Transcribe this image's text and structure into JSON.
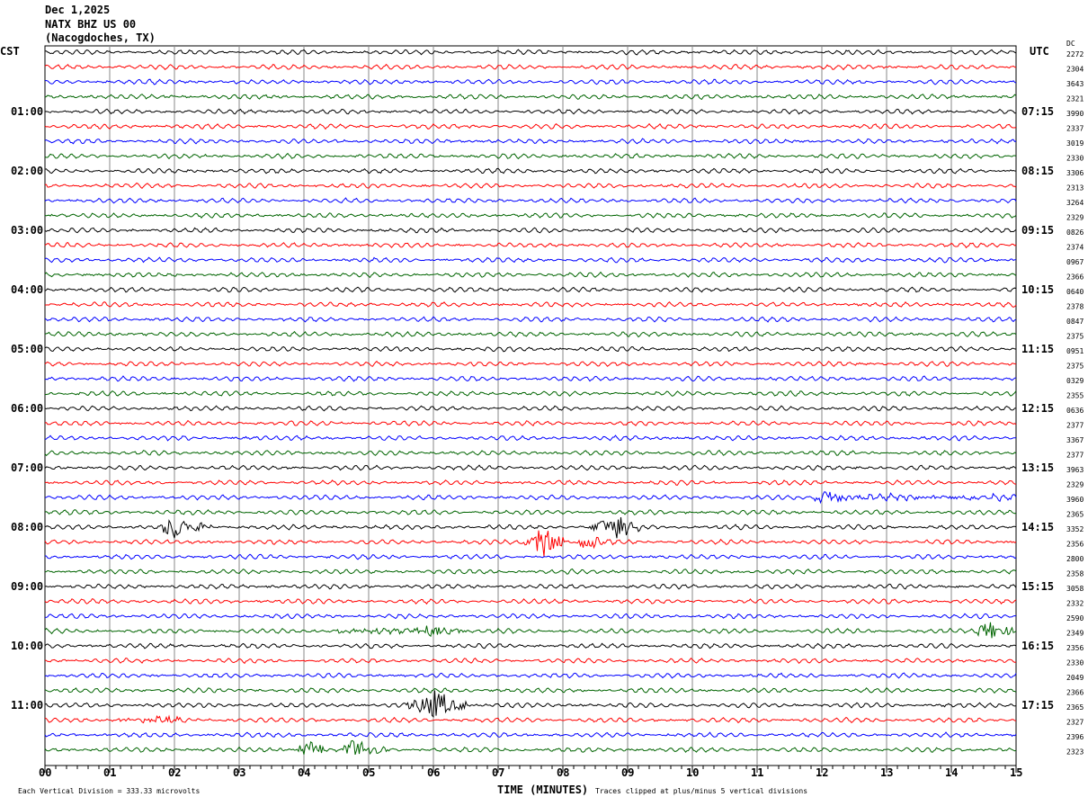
{
  "header": {
    "date": "Dec 1,2025",
    "station": "NATX BHZ US 00",
    "location": "(Nacogdoches, TX)"
  },
  "left_tz": "CST",
  "right_tz": "UTC",
  "dc_label": "DC",
  "chart_data": {
    "type": "line",
    "title": "",
    "xlabel": "TIME (MINUTES)",
    "xlim": [
      0,
      15
    ],
    "x_ticks": [
      "00",
      "01",
      "02",
      "03",
      "04",
      "05",
      "06",
      "07",
      "08",
      "09",
      "10",
      "11",
      "12",
      "13",
      "14",
      "15"
    ],
    "rows": 48,
    "row_minutes": 15,
    "colors": [
      "#000000",
      "#ff0000",
      "#0000ff",
      "#006400"
    ],
    "left_labels": [
      "01:00",
      "02:00",
      "03:00",
      "04:00",
      "05:00",
      "06:00",
      "07:00",
      "08:00",
      "09:00",
      "10:00",
      "11:00"
    ],
    "right_labels": [
      "07:15",
      "08:15",
      "09:15",
      "10:15",
      "11:15",
      "12:15",
      "13:15",
      "14:15",
      "15:15",
      "16:15",
      "17:15"
    ],
    "dc_values": [
      "2272",
      "2304",
      "3643",
      "2321",
      "3990",
      "2337",
      "3019",
      "2330",
      "3306",
      "2313",
      "3264",
      "2329",
      "0826",
      "2374",
      "0967",
      "2366",
      "0640",
      "2378",
      "0847",
      "2375",
      "0951",
      "2375",
      "0329",
      "2355",
      "0636",
      "2377",
      "3367",
      "2377",
      "3963",
      "2329",
      "3960",
      "2365",
      "3352",
      "2356",
      "2800",
      "2358",
      "3058",
      "2332",
      "2590",
      "2349",
      "2356",
      "2330",
      "2049",
      "2366",
      "2365",
      "2327",
      "2396",
      "2323"
    ],
    "events": [
      {
        "row": 30,
        "start": 11.8,
        "end": 15,
        "peak": 12.1,
        "amplitude": 3
      },
      {
        "row": 32,
        "start": 1.8,
        "end": 2.6,
        "peak": 2.05,
        "amplitude": 5
      },
      {
        "row": 32,
        "start": 8.4,
        "end": 9.2,
        "peak": 8.8,
        "amplitude": 5
      },
      {
        "row": 33,
        "start": 7.4,
        "end": 8.0,
        "peak": 7.7,
        "amplitude": 6
      },
      {
        "row": 33,
        "start": 8.2,
        "end": 8.8,
        "peak": 8.4,
        "amplitude": 2.5
      },
      {
        "row": 39,
        "start": 4.5,
        "end": 6.5,
        "peak": 6.0,
        "amplitude": 2.5
      },
      {
        "row": 39,
        "start": 14.4,
        "end": 15,
        "peak": 14.6,
        "amplitude": 4
      },
      {
        "row": 44,
        "start": 5.6,
        "end": 6.5,
        "peak": 6.05,
        "amplitude": 6
      },
      {
        "row": 45,
        "start": 1.0,
        "end": 2.6,
        "peak": 1.8,
        "amplitude": 1.5
      },
      {
        "row": 47,
        "start": 3.9,
        "end": 4.3,
        "peak": 4.1,
        "amplitude": 3
      },
      {
        "row": 47,
        "start": 4.6,
        "end": 5.3,
        "peak": 4.8,
        "amplitude": 4
      }
    ]
  },
  "footer": {
    "division": "Each Vertical Division =  333.33 microvolts",
    "clip": "Traces clipped at plus/minus 5 vertical divisions"
  }
}
